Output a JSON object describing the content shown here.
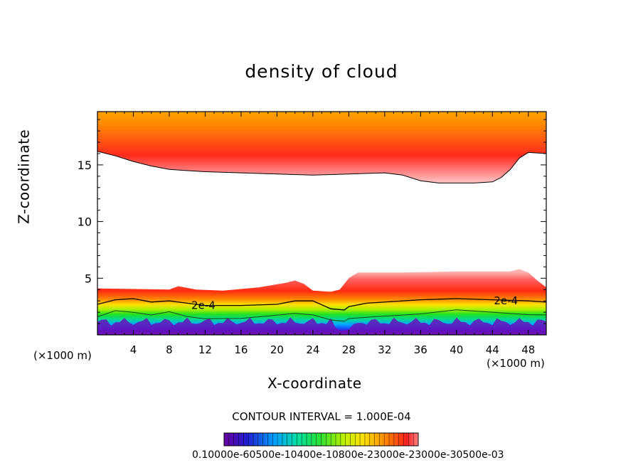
{
  "chart_data": {
    "type": "heatmap",
    "title": "density of cloud",
    "xlabel": "X-coordinate",
    "ylabel": "Z-coordinate",
    "x_unit": "(×1000 m)",
    "y_unit": "(×1000 m)",
    "xlim": [
      0,
      50
    ],
    "ylim": [
      0,
      19.7
    ],
    "x_ticks": [
      4,
      8,
      12,
      16,
      20,
      24,
      28,
      32,
      36,
      40,
      44,
      48
    ],
    "y_ticks": [
      5,
      10,
      15
    ],
    "contour_interval_label": "CONTOUR INTERVAL = 1.000E-04",
    "colorbar_labels_text": "0.10000e-60500e-10400e-10800e-23000e-23000e-30500e-03",
    "contour_labels": [
      {
        "text": "2e-4",
        "x": 11.8,
        "z": 2.6
      },
      {
        "text": "2e-4",
        "x": 45.5,
        "z": 3.0
      }
    ],
    "upper_layer_base": [
      [
        0,
        16.2
      ],
      [
        2,
        15.8
      ],
      [
        4,
        15.3
      ],
      [
        6,
        14.9
      ],
      [
        8,
        14.6
      ],
      [
        12,
        14.4
      ],
      [
        16,
        14.3
      ],
      [
        20,
        14.2
      ],
      [
        24,
        14.1
      ],
      [
        28,
        14.2
      ],
      [
        32,
        14.3
      ],
      [
        34,
        14.1
      ],
      [
        36,
        13.6
      ],
      [
        38,
        13.4
      ],
      [
        40,
        13.4
      ],
      [
        42,
        13.4
      ],
      [
        44,
        13.5
      ],
      [
        45,
        13.9
      ],
      [
        46,
        14.6
      ],
      [
        47,
        15.6
      ],
      [
        48,
        16.1
      ],
      [
        50,
        16.0
      ]
    ],
    "lower_layer_top": [
      [
        0,
        4.1
      ],
      [
        8,
        4.0
      ],
      [
        9,
        4.3
      ],
      [
        11,
        4.0
      ],
      [
        14,
        3.9
      ],
      [
        18,
        4.2
      ],
      [
        21,
        4.6
      ],
      [
        22,
        4.8
      ],
      [
        23,
        4.5
      ],
      [
        24,
        3.9
      ],
      [
        26,
        3.8
      ],
      [
        27,
        4.0
      ],
      [
        28,
        5.0
      ],
      [
        29,
        5.5
      ],
      [
        34,
        5.5
      ],
      [
        40,
        5.6
      ],
      [
        46,
        5.6
      ],
      [
        47,
        5.8
      ],
      [
        48,
        5.5
      ],
      [
        49,
        4.8
      ],
      [
        50,
        4.2
      ]
    ],
    "contour_2e-4": [
      [
        0,
        2.7
      ],
      [
        2,
        3.1
      ],
      [
        4,
        3.2
      ],
      [
        6,
        2.9
      ],
      [
        8,
        3.0
      ],
      [
        10,
        2.8
      ],
      [
        12,
        2.6
      ],
      [
        16,
        2.6
      ],
      [
        20,
        2.7
      ],
      [
        22,
        3.0
      ],
      [
        24,
        3.0
      ],
      [
        26,
        2.3
      ],
      [
        27.5,
        2.2
      ],
      [
        28,
        2.5
      ],
      [
        30,
        2.8
      ],
      [
        36,
        3.1
      ],
      [
        40,
        3.2
      ],
      [
        44,
        3.1
      ],
      [
        48,
        3.0
      ],
      [
        50,
        2.9
      ]
    ],
    "colors": {
      "top_band": [
        "#ffa500",
        "#ff8a00",
        "#ff5500",
        "#ff2a1a",
        "#ff8080",
        "#ffc0c0"
      ],
      "bottom_band": [
        "#ff8a8a",
        "#ff3030",
        "#ff8800",
        "#ffee00",
        "#aaff00",
        "#22ee22",
        "#00dd88",
        "#00aaff",
        "#1060ff",
        "#4010cc",
        "#8020aa"
      ]
    }
  },
  "labels": {
    "title": "density of cloud",
    "xlabel": "X-coordinate",
    "ylabel": "Z-coordinate",
    "x_unit": "(×1000 m)",
    "y_unit": "(×1000 m)",
    "interval": "CONTOUR INTERVAL = 1.000E-04",
    "colorbar": "0.10000e-60500e-10400e-10800e-23000e-23000e-30500e-03"
  }
}
